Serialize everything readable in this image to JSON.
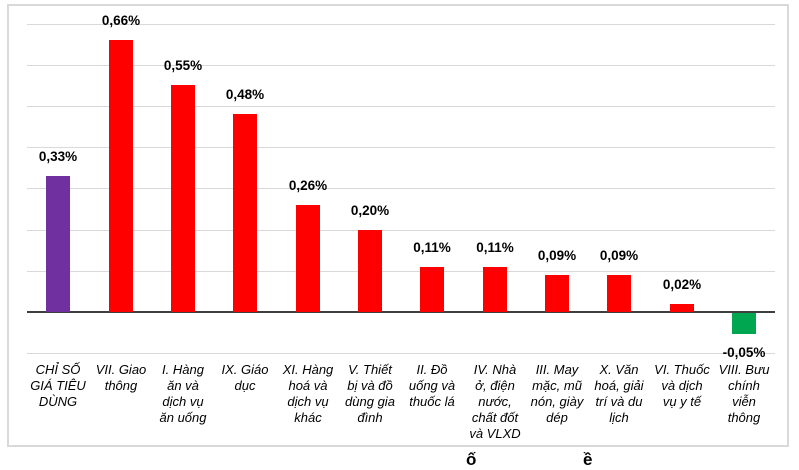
{
  "chart_data": {
    "type": "bar",
    "title": "",
    "categories": [
      "CHỈ SỐ\nGIÁ TIÊU\nDÙNG",
      "VII. Giao\nthông",
      "I. Hàng\năn và\ndịch vụ\năn uống",
      "IX. Giáo\ndục",
      "XI. Hàng\nhoá và\ndịch vụ\nkhác",
      "V. Thiết\nbị và đồ\ndùng gia\nđình",
      "II. Đồ\nuống và\nthuốc lá",
      "IV. Nhà\nở, điện\nnước,\nchất đốt\nvà VLXD",
      "III. May\nmặc, mũ\nnón, giày\ndép",
      "X. Văn\nhoá, giải\ntrí và du\nlịch",
      "VI. Thuốc\nvà dịch\nvụ y tế",
      "VIII. Bưu\nchính\nviễn\nthông"
    ],
    "values": [
      0.33,
      0.66,
      0.55,
      0.48,
      0.26,
      0.2,
      0.11,
      0.11,
      0.09,
      0.09,
      0.02,
      -0.05
    ],
    "value_labels": [
      "0,33%",
      "0,66%",
      "0,55%",
      "0,48%",
      "0,26%",
      "0,20%",
      "0,11%",
      "0,11%",
      "0,09%",
      "0,09%",
      "0,02%",
      "-0,05%"
    ],
    "bar_colors": [
      "#7030A0",
      "#FF0000",
      "#FF0000",
      "#FF0000",
      "#FF0000",
      "#FF0000",
      "#FF0000",
      "#FF0000",
      "#FF0000",
      "#FF0000",
      "#FF0000",
      "#00A650"
    ],
    "xlabel": "",
    "ylabel": "",
    "unit": "%",
    "ylim": [
      -0.15,
      0.75
    ],
    "gridline_values": [
      0.7,
      0.6,
      0.5,
      0.4,
      0.3,
      0.2,
      0.1,
      -0.1
    ],
    "grid": true,
    "legend": "none"
  },
  "colors": {
    "positive_bar": "#FF0000",
    "cpi_bar": "#7030A0",
    "negative_bar": "#00A650",
    "gridline": "#D9D9D9",
    "axis_line": "#3F3F3F",
    "frame_border": "#D9D9D9",
    "background": "#FFFFFF"
  },
  "caption_remnant": {
    "left_glyph": "ố",
    "right_glyph": "ề"
  }
}
